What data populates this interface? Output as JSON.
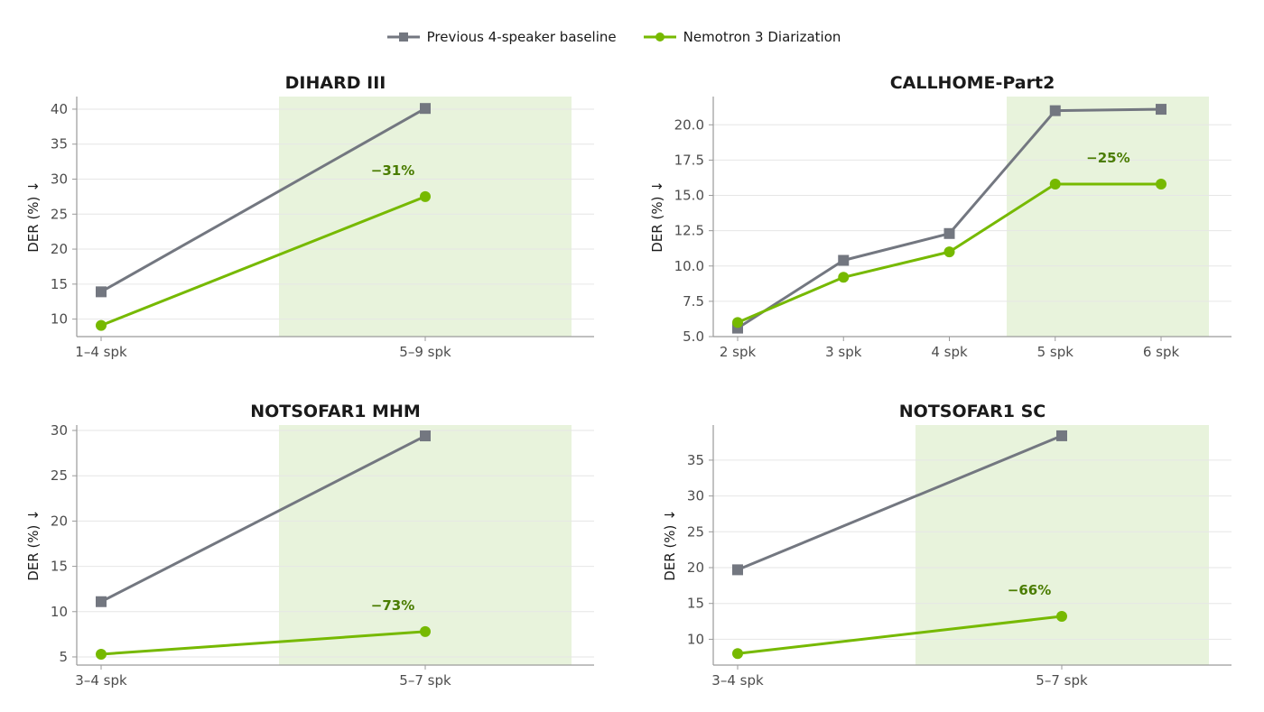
{
  "legend": {
    "baseline": "Previous 4-speaker baseline",
    "nemotron": "Nemotron 3 Diarization"
  },
  "colors": {
    "baseline": "#737780",
    "nemotron": "#76b900",
    "highlight": "#e8f3dc",
    "annotation": "#4a7c00",
    "axis": "#9a9a9a",
    "grid": "#e6e6e6",
    "tick_text": "#4d4d4d",
    "title_text": "#1a1a1a"
  },
  "chart_data": [
    {
      "type": "line",
      "title": "DIHARD III",
      "ylabel": "DER (%) ↓",
      "xlabel": "",
      "categories": [
        "1–4 spk",
        "5–9 spk"
      ],
      "series": [
        {
          "name": "Previous 4-speaker baseline",
          "values": [
            13.9,
            40.1
          ]
        },
        {
          "name": "Nemotron 3 Diarization",
          "values": [
            9.1,
            27.5
          ]
        }
      ],
      "ylim": [
        7.5,
        41.8
      ],
      "yticks": [
        10,
        15,
        20,
        25,
        30,
        35,
        40
      ],
      "ytick_labels": [
        "10",
        "15",
        "20",
        "25",
        "30",
        "35",
        "40"
      ],
      "highlight": {
        "from_category": 1,
        "label": "−31%"
      },
      "grid": "horizontal"
    },
    {
      "type": "line",
      "title": "CALLHOME-Part2",
      "ylabel": "DER (%) ↓",
      "xlabel": "",
      "categories": [
        "2 spk",
        "3 spk",
        "4 spk",
        "5 spk",
        "6 spk"
      ],
      "series": [
        {
          "name": "Previous 4-speaker baseline",
          "values": [
            5.6,
            10.4,
            12.3,
            21.0,
            21.1
          ]
        },
        {
          "name": "Nemotron 3 Diarization",
          "values": [
            6.0,
            9.2,
            11.0,
            15.8,
            15.8
          ]
        }
      ],
      "ylim": [
        5.0,
        22.0
      ],
      "yticks": [
        5.0,
        7.5,
        10.0,
        12.5,
        15.0,
        17.5,
        20.0
      ],
      "ytick_labels": [
        "5.0",
        "7.5",
        "10.0",
        "12.5",
        "15.0",
        "17.5",
        "20.0"
      ],
      "highlight": {
        "from_category": 3,
        "label": "−25%"
      },
      "grid": "horizontal"
    },
    {
      "type": "line",
      "title": "NOTSOFAR1 MHM",
      "ylabel": "DER (%) ↓",
      "xlabel": "",
      "categories": [
        "3–4 spk",
        "5–7 spk"
      ],
      "series": [
        {
          "name": "Previous 4-speaker baseline",
          "values": [
            11.1,
            29.4
          ]
        },
        {
          "name": "Nemotron 3 Diarization",
          "values": [
            5.3,
            7.8
          ]
        }
      ],
      "ylim": [
        4.1,
        30.6
      ],
      "yticks": [
        5,
        10,
        15,
        20,
        25,
        30
      ],
      "ytick_labels": [
        "5",
        "10",
        "15",
        "20",
        "25",
        "30"
      ],
      "highlight": {
        "from_category": 1,
        "label": "−73%"
      },
      "grid": "horizontal"
    },
    {
      "type": "line",
      "title": "NOTSOFAR1 SC",
      "ylabel": "DER (%) ↓",
      "xlabel": "",
      "categories": [
        "3–4 spk",
        "5–7 spk"
      ],
      "series": [
        {
          "name": "Previous 4-speaker baseline",
          "values": [
            19.7,
            38.4
          ]
        },
        {
          "name": "Nemotron 3 Diarization",
          "values": [
            8.0,
            13.2
          ]
        }
      ],
      "ylim": [
        6.4,
        39.9
      ],
      "yticks": [
        10,
        15,
        20,
        25,
        30,
        35
      ],
      "ytick_labels": [
        "10",
        "15",
        "20",
        "25",
        "30",
        "35"
      ],
      "highlight": {
        "from_category": 1,
        "label": "−66%"
      },
      "grid": "horizontal"
    }
  ]
}
